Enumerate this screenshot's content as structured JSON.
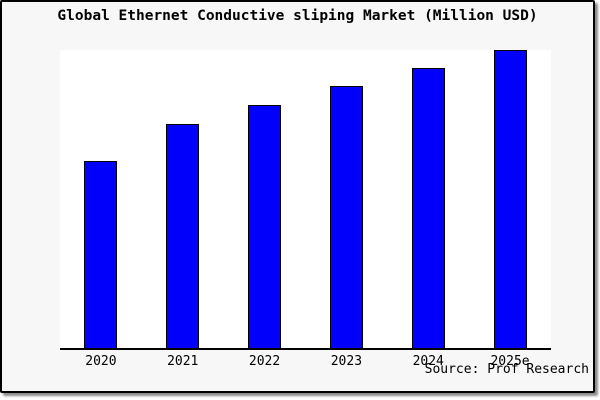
{
  "frame": {
    "background": "#f7f7f7",
    "border_color": "#000000"
  },
  "chart_data": {
    "type": "bar",
    "title": "Global Ethernet Conductive sliping Market (Million USD)",
    "categories": [
      "2020",
      "2021",
      "2022",
      "2023",
      "2024",
      "2025e"
    ],
    "values": [
      62.9,
      75.3,
      81.6,
      88.0,
      94.0,
      100.0
    ],
    "values_unit": "relative index, tallest bar = 100 (no y-axis scale shown)",
    "xlabel": "",
    "ylabel": "",
    "ylim": [
      0,
      100
    ],
    "grid": false,
    "legend": false,
    "bar_color": "#0000fb",
    "bar_border_color": "#000000",
    "plot_background": "#ffffff",
    "axis_color": "#000000"
  },
  "source": {
    "label": "Source: Prof Research"
  }
}
